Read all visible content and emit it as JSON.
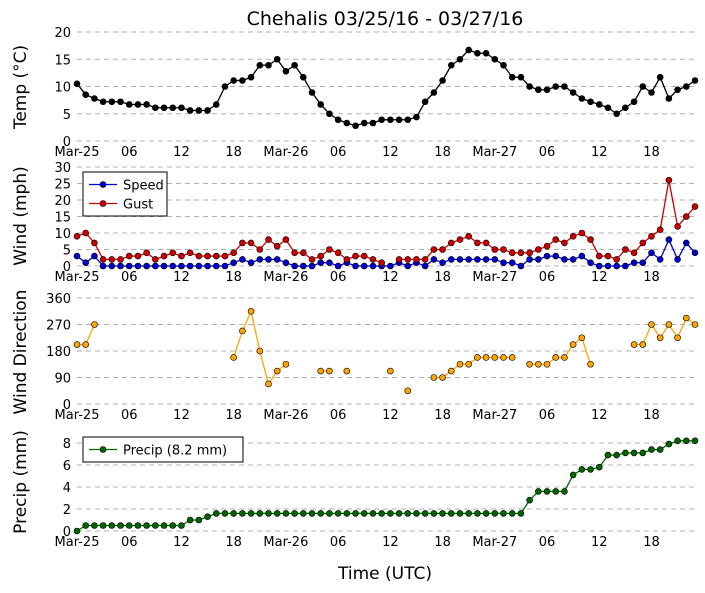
{
  "title": "Chehalis 03/25/16 - 03/27/16",
  "xlabel": "Time (UTC)",
  "time_tick_labels": [
    "Mar-25",
    "06",
    "12",
    "18",
    "Mar-26",
    "06",
    "12",
    "18",
    "Mar-27",
    "06",
    "12",
    "18"
  ],
  "colors": {
    "temp": "#000000",
    "speed": "#0000cc",
    "gust": "#cc0000",
    "direction": "#ffa500",
    "precip": "#006400",
    "grid": "#b0b0b0"
  },
  "chart_data": [
    {
      "type": "line",
      "ylabel": "Temp (°C)",
      "ylim": [
        0,
        20
      ],
      "yticks": [
        0,
        5,
        10,
        15,
        20
      ],
      "x_hours": [
        0,
        1,
        2,
        3,
        4,
        5,
        6,
        7,
        8,
        9,
        10,
        11,
        12,
        13,
        14,
        15,
        16,
        17,
        18,
        19,
        20,
        21,
        22,
        23,
        24,
        25,
        26,
        27,
        28,
        29,
        30,
        31,
        32,
        33,
        34,
        35,
        36,
        37,
        38,
        39,
        40,
        41,
        42,
        43,
        44,
        45,
        46,
        47,
        48,
        49,
        50,
        51,
        52,
        53,
        54,
        55,
        56,
        57,
        58,
        59,
        60,
        61,
        62,
        63,
        64,
        65,
        66,
        67,
        68,
        69,
        70,
        71
      ],
      "series": [
        {
          "key": "temp",
          "values": [
            10.5,
            8.5,
            7.8,
            7.2,
            7.2,
            7.2,
            6.7,
            6.7,
            6.7,
            6.1,
            6.1,
            6.1,
            6.1,
            5.6,
            5.6,
            5.6,
            6.7,
            10,
            11.1,
            11.1,
            11.7,
            13.9,
            13.9,
            15,
            12.8,
            13.9,
            11.7,
            8.9,
            6.7,
            5,
            3.9,
            3.3,
            2.8,
            3.3,
            3.3,
            3.9,
            3.9,
            3.9,
            3.9,
            4.4,
            7.2,
            8.9,
            11.1,
            13.9,
            15,
            16.7,
            16.1,
            16.1,
            15,
            13.9,
            11.7,
            11.7,
            10,
            9.4,
            9.4,
            10,
            10,
            8.9,
            7.8,
            7.2,
            6.7,
            6.1,
            5,
            6.1,
            7.2,
            10,
            8.9,
            11.7,
            7.8,
            9.4,
            10,
            11.1
          ]
        }
      ]
    },
    {
      "type": "line",
      "ylabel": "Wind (mph)",
      "ylim": [
        0,
        30
      ],
      "yticks": [
        0,
        5,
        10,
        15,
        20,
        25,
        30
      ],
      "legend": "top-left",
      "series": [
        {
          "key": "speed",
          "name": "Speed",
          "values": [
            3,
            1,
            3,
            0,
            0,
            0,
            0,
            0,
            0,
            0,
            0,
            0,
            0,
            0,
            0,
            0,
            0,
            0,
            1,
            2,
            1,
            2,
            2,
            2,
            1,
            0,
            0,
            0,
            1,
            1,
            0,
            1,
            0,
            0,
            0,
            0,
            0,
            1,
            0,
            1,
            0,
            2,
            1,
            2,
            2,
            2,
            2,
            2,
            2,
            1,
            1,
            0,
            2,
            2,
            3,
            3,
            2,
            2,
            3,
            1,
            0,
            0,
            0,
            0,
            1,
            1,
            4,
            2,
            8,
            2,
            7,
            4
          ]
        },
        {
          "key": "gust",
          "name": "Gust",
          "values": [
            9,
            10,
            7,
            2,
            2,
            2,
            3,
            3,
            4,
            2,
            3,
            4,
            3,
            4,
            3,
            3,
            3,
            3,
            4,
            7,
            7,
            5,
            8,
            6,
            8,
            4,
            4,
            2,
            3,
            5,
            4,
            2,
            3,
            3,
            2,
            1,
            null,
            2,
            2,
            2,
            2,
            5,
            5,
            7,
            8,
            9,
            7,
            7,
            5,
            5,
            4,
            4,
            4,
            5,
            6,
            8,
            7,
            9,
            10,
            8,
            3,
            3,
            2,
            5,
            4,
            7,
            9,
            11,
            26,
            12,
            15,
            18
          ]
        }
      ]
    },
    {
      "type": "scatter",
      "ylabel": "Wind Direction",
      "ylim": [
        0,
        360
      ],
      "yticks": [
        0,
        90,
        180,
        270,
        360
      ],
      "series": [
        {
          "key": "direction",
          "values": [
            202,
            202,
            270,
            null,
            null,
            null,
            null,
            null,
            null,
            null,
            null,
            null,
            null,
            null,
            null,
            null,
            null,
            null,
            158,
            248,
            315,
            180,
            68,
            112,
            135,
            null,
            null,
            null,
            112,
            112,
            null,
            112,
            null,
            null,
            null,
            null,
            112,
            null,
            45,
            null,
            null,
            90,
            90,
            112,
            135,
            135,
            158,
            158,
            158,
            158,
            158,
            null,
            135,
            135,
            135,
            158,
            158,
            202,
            225,
            135,
            null,
            null,
            null,
            null,
            202,
            202,
            270,
            225,
            270,
            225,
            292,
            270
          ]
        }
      ]
    },
    {
      "type": "line",
      "ylabel": "Precip (mm)",
      "ylim": [
        0,
        9
      ],
      "yticks": [
        0,
        2,
        4,
        6,
        8
      ],
      "legend": "top-left",
      "series": [
        {
          "key": "precip",
          "name": "Precip (8.2 mm)",
          "values": [
            0,
            0.5,
            0.5,
            0.5,
            0.5,
            0.5,
            0.5,
            0.5,
            0.5,
            0.5,
            0.5,
            0.5,
            0.5,
            1.0,
            1.0,
            1.3,
            1.6,
            1.6,
            1.6,
            1.6,
            1.6,
            1.6,
            1.6,
            1.6,
            1.6,
            1.6,
            1.6,
            1.6,
            1.6,
            1.6,
            1.6,
            1.6,
            1.6,
            1.6,
            1.6,
            1.6,
            1.6,
            1.6,
            1.6,
            1.6,
            1.6,
            1.6,
            1.6,
            1.6,
            1.6,
            1.6,
            1.6,
            1.6,
            1.6,
            1.6,
            1.6,
            1.6,
            2.8,
            3.6,
            3.6,
            3.6,
            3.6,
            5.1,
            5.6,
            5.6,
            5.8,
            6.9,
            6.9,
            7.1,
            7.1,
            7.1,
            7.4,
            7.4,
            7.9,
            8.2,
            8.2,
            8.2
          ]
        }
      ]
    }
  ]
}
